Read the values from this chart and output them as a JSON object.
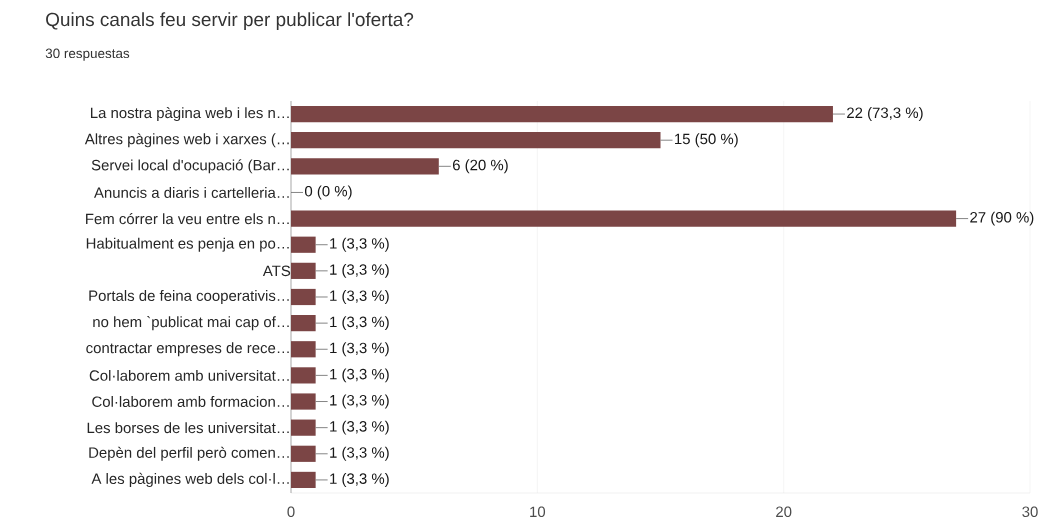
{
  "chart_data": {
    "type": "bar",
    "orientation": "horizontal",
    "title": "Quins canals feu servir per publicar l'oferta?",
    "subtitle": "30 respuestas",
    "categories": [
      "La nostra pàgina web i les n…",
      "Altres pàgines web i xarxes (…",
      "Servei local d'ocupació (Bar…",
      "Anuncis a diaris i cartelleria…",
      "Fem córrer la veu entre els n…",
      "Habitualment es penja en po…",
      "ATS",
      "Portals de feina cooperativis…",
      "no hem `publicat mai cap of…",
      "contractar empreses de rece…",
      "Col·laborem amb universitat…",
      "Col·laborem amb formacion…",
      "Les borses de les universitat…",
      "Depèn del perfil però comen…",
      "A les pàgines web dels col·l…"
    ],
    "values": [
      22,
      15,
      6,
      0,
      27,
      1,
      1,
      1,
      1,
      1,
      1,
      1,
      1,
      1,
      1
    ],
    "value_labels": [
      "22 (73,3 %)",
      "15 (50 %)",
      "6 (20 %)",
      "0 (0 %)",
      "27 (90 %)",
      "1 (3,3 %)",
      "1 (3,3 %)",
      "1 (3,3 %)",
      "1 (3,3 %)",
      "1 (3,3 %)",
      "1 (3,3 %)",
      "1 (3,3 %)",
      "1 (3,3 %)",
      "1 (3,3 %)",
      "1 (3,3 %)"
    ],
    "color": "#7b4545",
    "xlim": [
      0,
      30
    ],
    "xticks": [
      0,
      10,
      20,
      30
    ],
    "grid": "x"
  }
}
